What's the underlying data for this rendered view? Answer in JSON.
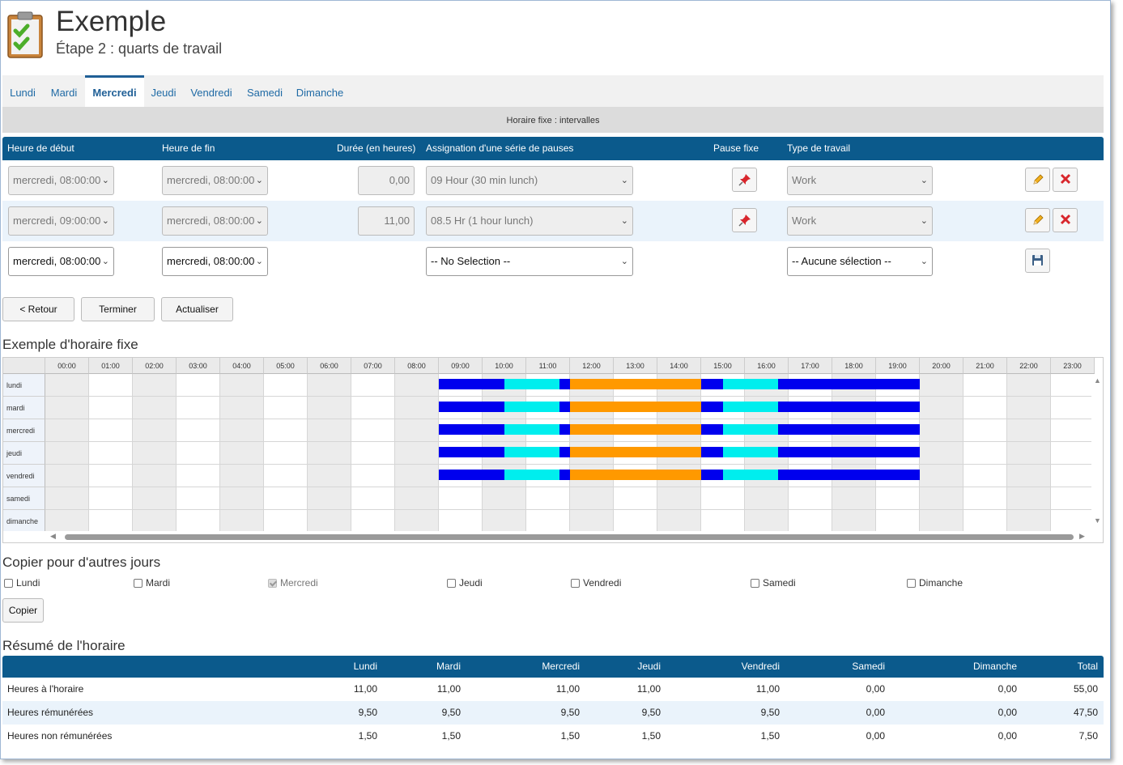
{
  "header": {
    "title": "Exemple",
    "subtitle": "Étape 2 : quarts de travail"
  },
  "tabs": [
    {
      "label": "Lundi",
      "active": false
    },
    {
      "label": "Mardi",
      "active": false
    },
    {
      "label": "Mercredi",
      "active": true
    },
    {
      "label": "Jeudi",
      "active": false
    },
    {
      "label": "Vendredi",
      "active": false
    },
    {
      "label": "Samedi",
      "active": false
    },
    {
      "label": "Dimanche",
      "active": false
    }
  ],
  "section_title": "Horaire fixe : intervalles",
  "shift_table": {
    "columns": [
      "Heure de début",
      "Heure de fin",
      "Durée (en heures)",
      "Assignation d'une série de pauses",
      "Pause fixe",
      "Type de travail"
    ],
    "rows": [
      {
        "start": "mercredi, 08:00:00",
        "end": "mercredi, 08:00:00",
        "duration": "0,00",
        "break_series": "09 Hour (30 min lunch)",
        "work_type": "Work"
      },
      {
        "start": "mercredi, 09:00:00",
        "end": "mercredi, 08:00:00",
        "duration": "11,00",
        "break_series": "08.5 Hr (1 hour lunch)",
        "work_type": "Work"
      }
    ],
    "new_row": {
      "start": "mercredi, 08:00:00",
      "end": "mercredi, 08:00:00",
      "break_series": "-- No Selection --",
      "work_type": "-- Aucune sélection --"
    }
  },
  "buttons": {
    "back": "< Retour",
    "finish": "Terminer",
    "refresh": "Actualiser",
    "copy": "Copier"
  },
  "schedule": {
    "title": "Exemple d'horaire fixe",
    "hours": [
      "00:00",
      "01:00",
      "02:00",
      "03:00",
      "04:00",
      "05:00",
      "06:00",
      "07:00",
      "08:00",
      "09:00",
      "10:00",
      "11:00",
      "12:00",
      "13:00",
      "14:00",
      "15:00",
      "16:00",
      "17:00",
      "18:00",
      "19:00",
      "20:00",
      "21:00",
      "22:00",
      "23:00"
    ],
    "days": [
      "lundi",
      "mardi",
      "mercredi",
      "jeudi",
      "vendredi",
      "samedi",
      "dimanche"
    ],
    "colors": {
      "work": "#0000ee",
      "break": "#00eeee",
      "lunch": "#ff9900"
    },
    "day_segments": [
      {
        "type": "work",
        "start": 9.0,
        "end": 10.5
      },
      {
        "type": "break",
        "start": 10.5,
        "end": 11.75
      },
      {
        "type": "work",
        "start": 11.75,
        "end": 12.0
      },
      {
        "type": "lunch",
        "start": 12.0,
        "end": 15.0
      },
      {
        "type": "work",
        "start": 15.0,
        "end": 15.5
      },
      {
        "type": "break",
        "start": 15.5,
        "end": 16.75
      },
      {
        "type": "work",
        "start": 16.75,
        "end": 20.0
      }
    ],
    "active_days": [
      0,
      1,
      2,
      3,
      4
    ]
  },
  "copy": {
    "title": "Copier pour d'autres jours",
    "days": [
      {
        "label": "Lundi",
        "checked": false,
        "disabled": false
      },
      {
        "label": "Mardi",
        "checked": false,
        "disabled": false
      },
      {
        "label": "Mercredi",
        "checked": true,
        "disabled": true
      },
      {
        "label": "Jeudi",
        "checked": false,
        "disabled": false
      },
      {
        "label": "Vendredi",
        "checked": false,
        "disabled": false
      },
      {
        "label": "Samedi",
        "checked": false,
        "disabled": false
      },
      {
        "label": "Dimanche",
        "checked": false,
        "disabled": false
      }
    ]
  },
  "summary": {
    "title": "Résumé de l'horaire",
    "columns": [
      "Lundi",
      "Mardi",
      "Mercredi",
      "Jeudi",
      "Vendredi",
      "Samedi",
      "Dimanche",
      "Total"
    ],
    "rows": [
      {
        "label": "Heures à l'horaire",
        "values": [
          "11,00",
          "11,00",
          "11,00",
          "11,00",
          "11,00",
          "0,00",
          "0,00",
          "55,00"
        ]
      },
      {
        "label": "Heures rémunérées",
        "values": [
          "9,50",
          "9,50",
          "9,50",
          "9,50",
          "9,50",
          "0,00",
          "0,00",
          "47,50"
        ]
      },
      {
        "label": "Heures non rémunérées",
        "values": [
          "1,50",
          "1,50",
          "1,50",
          "1,50",
          "1,50",
          "0,00",
          "0,00",
          "7,50"
        ]
      }
    ]
  }
}
